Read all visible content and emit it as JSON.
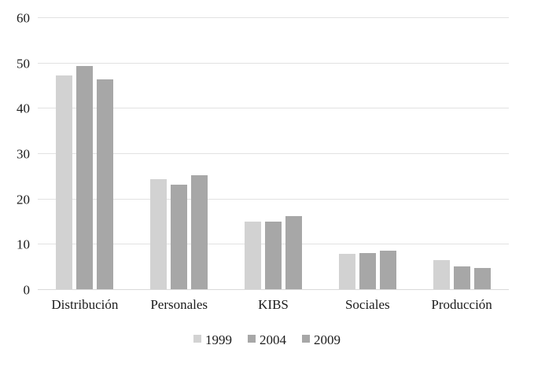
{
  "chart_data": {
    "type": "bar",
    "title": "",
    "xlabel": "",
    "ylabel": "",
    "categories": [
      "Distribución",
      "Personales",
      "KIBS",
      "Sociales",
      "Producción"
    ],
    "series": [
      {
        "name": "1999",
        "color": "#d2d2d2",
        "values": [
          47.1,
          24.2,
          15.0,
          7.8,
          6.4
        ]
      },
      {
        "name": "2004",
        "color": "#a7a7a7",
        "values": [
          49.3,
          23.0,
          15.0,
          8.0,
          5.1
        ]
      },
      {
        "name": "2009",
        "color": "#a7a7a7",
        "values": [
          46.3,
          25.1,
          16.1,
          8.5,
          4.6
        ]
      }
    ],
    "ylim": [
      0,
      60
    ],
    "yticks": [
      0,
      10,
      20,
      30,
      40,
      50,
      60
    ],
    "grid": true,
    "legend_position": "bottom-center"
  },
  "colors": {
    "background": "#ffffff",
    "gridline": "#e2e2e2",
    "axis_line": "#d9d9d9",
    "text": "#1c1c1c"
  }
}
